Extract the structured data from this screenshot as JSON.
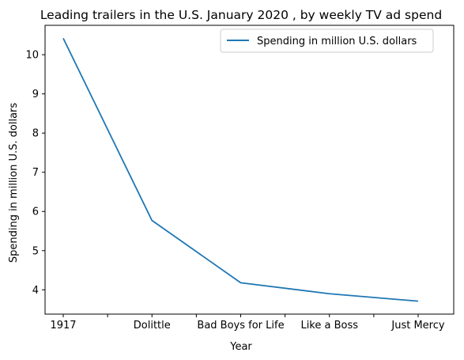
{
  "chart_data": {
    "type": "line",
    "title": "Leading trailers in the U.S. January 2020 , by weekly TV ad spend",
    "xlabel": "Year",
    "ylabel": "Spending in million U.S. dollars",
    "categories": [
      "1917",
      "",
      "Dolittle",
      "",
      "Bad Boys for Life",
      "",
      "Like a Boss",
      "",
      "Just Mercy"
    ],
    "series": [
      {
        "name": "Spending in million U.S. dollars",
        "color": "#1f77b4",
        "values": [
          10.42,
          null,
          5.77,
          null,
          4.18,
          null,
          3.9,
          null,
          3.71
        ]
      }
    ],
    "ylim": [
      3.38,
      10.75
    ],
    "yticks": [
      4,
      5,
      6,
      7,
      8,
      9,
      10
    ],
    "grid": false,
    "legend_position": "top-right"
  }
}
